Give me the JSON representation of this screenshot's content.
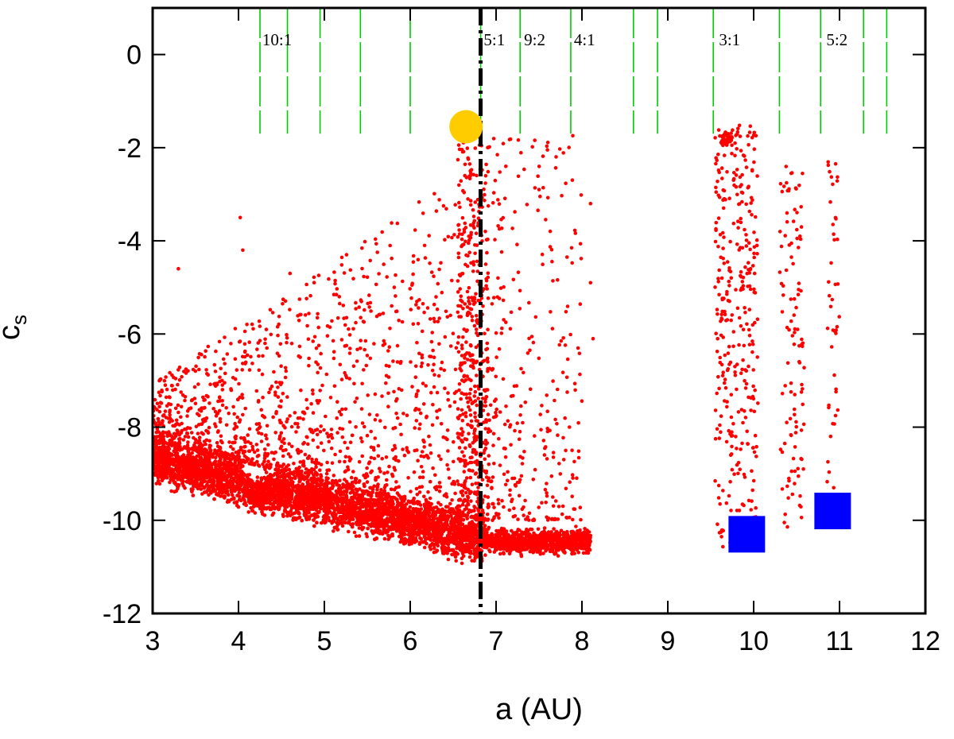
{
  "chart_data": {
    "type": "scatter",
    "xlabel": "a (AU)",
    "ylabel": "c",
    "ylabel_subscript": "s",
    "xlim": [
      3,
      12
    ],
    "ylim": [
      -12,
      1
    ],
    "xticks": [
      3,
      4,
      5,
      6,
      7,
      8,
      9,
      10,
      11,
      12
    ],
    "yticks": [
      0,
      -2,
      -4,
      -6,
      -8,
      -10,
      -12
    ],
    "grid": false,
    "legend": "none",
    "colors": {
      "points": "#ff0000",
      "resonance_lines": "#00cc00",
      "highlight_circle": "#ffcc00",
      "highlight_squares": "#0000ff",
      "vertical_marker": "#000000"
    },
    "resonance_lines_x": [
      4.25,
      4.57,
      4.95,
      5.42,
      6.0,
      6.82,
      7.28,
      7.87,
      8.6,
      8.88,
      9.53,
      10.3,
      10.78,
      11.28,
      11.55
    ],
    "resonance_line_range_y": [
      -1.7,
      1
    ],
    "resonance_labels": [
      {
        "text": "10:1",
        "x": 4.45
      },
      {
        "text": "5:1",
        "x": 6.98
      },
      {
        "text": "9:2",
        "x": 7.45
      },
      {
        "text": "4:1",
        "x": 8.03
      },
      {
        "text": "3:1",
        "x": 9.72
      },
      {
        "text": "5:2",
        "x": 10.97
      }
    ],
    "resonance_label_y": 0.2,
    "vertical_marker_x": 6.82,
    "highlight_circle": {
      "x": 6.65,
      "y": -1.55
    },
    "highlight_squares": [
      {
        "x": 9.92,
        "y": -10.3
      },
      {
        "x": 10.92,
        "y": -9.8
      }
    ],
    "series_description": "dense red point cloud representing c_s vs a",
    "dense_band": {
      "x_range": [
        3.0,
        6.85
      ],
      "y_center_at_x3": -8.7,
      "y_center_at_x6.8": -10.4,
      "half_width": 0.7
    },
    "secondary_band": {
      "x_range": [
        6.85,
        8.1
      ],
      "y_center": -10.45,
      "half_width": 0.35
    },
    "sparse_clusters": [
      {
        "x_range": [
          9.55,
          10.05
        ],
        "y_range": [
          -10.6,
          -1.5
        ]
      },
      {
        "x_range": [
          10.3,
          10.6
        ],
        "y_range": [
          -10.2,
          -2.4
        ]
      },
      {
        "x_range": [
          10.85,
          11.0
        ],
        "y_range": [
          -9.8,
          -2.3
        ]
      }
    ]
  }
}
